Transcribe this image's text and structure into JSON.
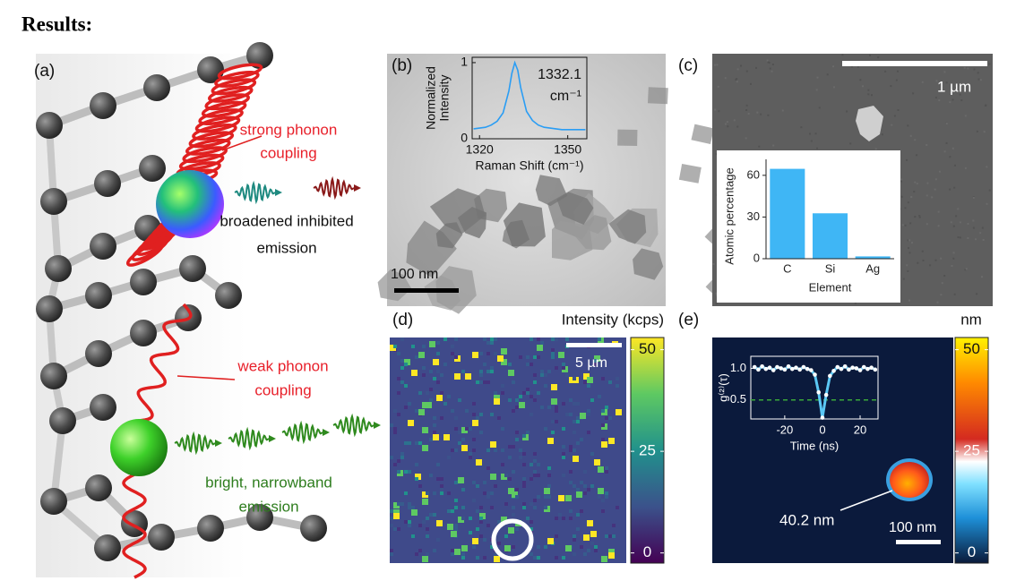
{
  "heading": "Results:",
  "panels": {
    "a": {
      "label": "(a)",
      "strong_coupling": [
        "strong phonon",
        "coupling"
      ],
      "broadened_emission": [
        "broadened inhibited",
        "emission"
      ],
      "weak_coupling": [
        "weak phonon",
        "coupling"
      ],
      "bright_emission": [
        "bright, narrowband",
        "emission"
      ]
    },
    "b": {
      "label": "(b)",
      "scale_bar": "100 nm"
    },
    "c": {
      "label": "(c)",
      "scale_bar": "1 µm"
    },
    "d": {
      "label": "(d)",
      "scale_bar": "5 µm",
      "colorbar": {
        "label": "Intensity (kcps)",
        "lim": [
          -2.5,
          53
        ],
        "ticks": [
          0,
          25,
          50
        ]
      }
    },
    "e": {
      "label": "(e)",
      "scale_bar": "100 nm",
      "annotation": "40.2 nm",
      "colorbar": {
        "label": "nm",
        "lim": [
          -2.5,
          53
        ],
        "ticks": [
          0,
          25,
          50
        ]
      }
    }
  },
  "chart_data": [
    {
      "type": "line",
      "x_label": "Raman Shift (cm⁻¹)",
      "y_label": [
        "Normalized",
        "Intensity"
      ],
      "annotation": [
        "1332.1",
        "cm⁻¹"
      ],
      "x": [
        1318,
        1320,
        1322,
        1324,
        1326,
        1328,
        1330,
        1331,
        1332,
        1333,
        1334,
        1336,
        1338,
        1340,
        1342,
        1344,
        1346,
        1348,
        1350,
        1352,
        1354,
        1356
      ],
      "values": [
        0.13,
        0.14,
        0.15,
        0.18,
        0.23,
        0.34,
        0.63,
        0.86,
        1.0,
        0.9,
        0.67,
        0.36,
        0.24,
        0.18,
        0.15,
        0.14,
        0.13,
        0.12,
        0.12,
        0.12,
        0.12,
        0.12
      ],
      "color": "#2a9df4",
      "xlim": [
        1317.5,
        1356.5
      ],
      "ylim": [
        0,
        1.07
      ],
      "xticks": [
        1320,
        1350
      ],
      "yticks": [
        0,
        1
      ]
    },
    {
      "type": "bar",
      "x_label": "Element",
      "y_label": "Atomic percentage",
      "categories": [
        "C",
        "Si",
        "Ag"
      ],
      "values": [
        65,
        33,
        2
      ],
      "color": "#3fb6f5",
      "ylim": [
        0,
        71.5
      ],
      "yticks": [
        0,
        30,
        60
      ]
    },
    {
      "type": "line",
      "x_label": "Time (ns)",
      "y_label": "g⁽²⁾(τ)",
      "x": [
        -36,
        -34,
        -32,
        -30,
        -28,
        -26,
        -24,
        -22,
        -20,
        -18,
        -16,
        -14,
        -12,
        -10,
        -8,
        -6,
        -4,
        -2,
        0,
        2,
        4,
        6,
        8,
        10,
        12,
        14,
        16,
        18,
        20,
        22,
        24,
        26,
        28
      ],
      "values": [
        1.02,
        0.98,
        1.03,
        0.99,
        1.01,
        0.97,
        1.02,
        1.0,
        0.98,
        1.03,
        0.99,
        1.01,
        0.98,
        1.02,
        0.99,
        0.97,
        0.9,
        0.62,
        0.22,
        0.58,
        0.88,
        0.96,
        1.02,
        0.99,
        1.03,
        0.98,
        1.01,
        1.0,
        0.97,
        1.02,
        0.99,
        1.01,
        0.98
      ],
      "color": "#5bc8f5",
      "marker_color": "#ffffff",
      "reference_line": {
        "value": 0.5,
        "color": "#3aa83a"
      },
      "xlim": [
        -38,
        29.5
      ],
      "ylim": [
        0.2,
        1.19
      ],
      "xticks": [
        -20,
        0,
        20
      ],
      "yticks": [
        0.5,
        {
          "value": 1,
          "label": "1.0"
        }
      ]
    }
  ]
}
